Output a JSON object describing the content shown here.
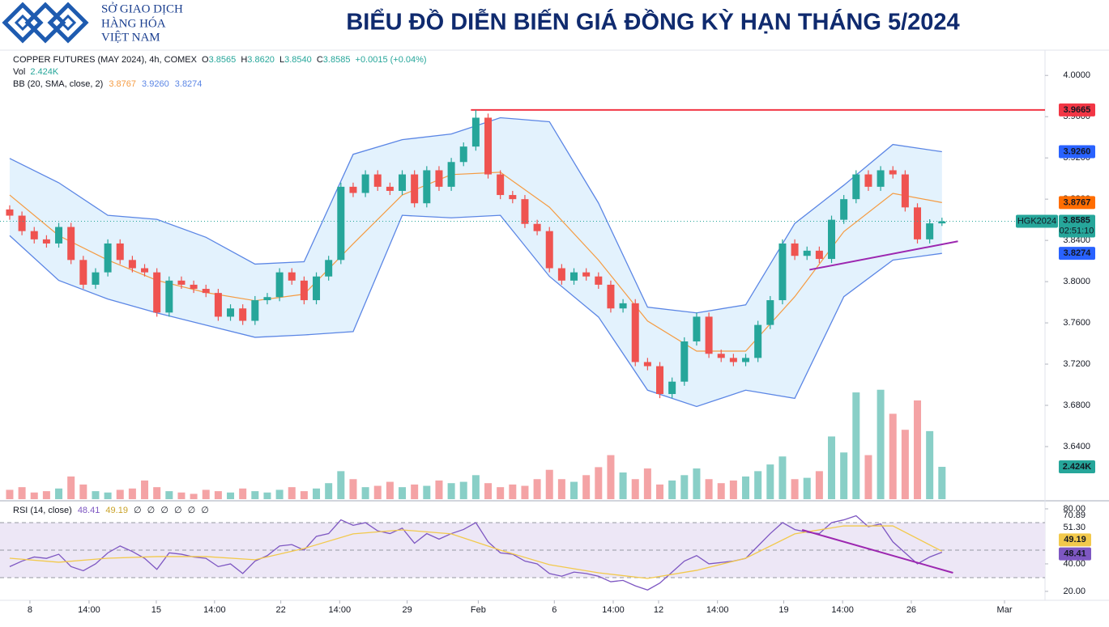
{
  "header": {
    "logo": [
      "SỞ GIAO DỊCH",
      "HÀNG HÓA",
      "VIỆT NAM"
    ],
    "title": "BIỂU ĐỒ DIỄN BIẾN GIÁ ĐỒNG KỲ HẠN THÁNG 5/2024"
  },
  "chart_data": [
    {
      "type": "candlestick",
      "legend": {
        "symbol": "COPPER FUTURES (MAY 2024), 4h, COMEX",
        "ohlc": [
          {
            "key": "O",
            "value": "3.8565"
          },
          {
            "key": "H",
            "value": "3.8620"
          },
          {
            "key": "L",
            "value": "3.8540"
          },
          {
            "key": "C",
            "value": "3.8585"
          }
        ],
        "change": "+0.0015 (+0.04%)",
        "vol": {
          "name": "Vol",
          "value": "2.424K"
        },
        "bb": {
          "name": "BB (20, SMA, close, 2)",
          "values": [
            "3.8767",
            "3.9260",
            "3.8274"
          ]
        }
      },
      "xlim": [
        -0.79,
        84.4
      ],
      "xticks": [
        {
          "value": 1.65,
          "label": "8"
        },
        {
          "value": 6.47,
          "label": "14:00"
        },
        {
          "value": 11.95,
          "label": "15"
        },
        {
          "value": 16.7,
          "label": "14:00"
        },
        {
          "value": 22.1,
          "label": "22"
        },
        {
          "value": 26.9,
          "label": "14:00"
        },
        {
          "value": 32.4,
          "label": "29"
        },
        {
          "value": 38.2,
          "label": "Feb"
        },
        {
          "value": 44.4,
          "label": "6"
        },
        {
          "value": 49.2,
          "label": "14:00"
        },
        {
          "value": 52.9,
          "label": "12"
        },
        {
          "value": 57.7,
          "label": "14:00"
        },
        {
          "value": 63.1,
          "label": "19"
        },
        {
          "value": 67.9,
          "label": "14:00"
        },
        {
          "value": 73.5,
          "label": "26"
        },
        {
          "value": 81.1,
          "label": "Mar"
        }
      ],
      "ylim": [
        3.589,
        4.0245
      ],
      "yticks": [
        {
          "value": 4.0,
          "label": "4.0000"
        },
        {
          "value": 3.96,
          "label": "3.9600"
        },
        {
          "value": 3.92,
          "label": "3.9200"
        },
        {
          "value": 3.88,
          "label": "3.8800"
        },
        {
          "value": 3.84,
          "label": "3.8400"
        },
        {
          "value": 3.8,
          "label": "3.8000"
        },
        {
          "value": 3.76,
          "label": "3.7600"
        },
        {
          "value": 3.72,
          "label": "3.7200"
        },
        {
          "value": 3.68,
          "label": "3.6800"
        },
        {
          "value": 3.64,
          "label": "3.6400"
        }
      ],
      "up_color": "#26a69a",
      "down_color": "#ef5350",
      "symbol_label": "HGK2024",
      "last_label": "3.8585",
      "countdown": "02:51:10",
      "open": [
        3.87,
        3.864,
        3.849,
        3.841,
        3.837,
        3.853,
        3.821,
        3.797,
        3.809,
        3.837,
        3.821,
        3.813,
        3.809,
        3.77,
        3.801,
        3.797,
        3.793,
        3.789,
        3.766,
        3.774,
        3.762,
        3.782,
        3.785,
        3.809,
        3.801,
        3.782,
        3.805,
        3.821,
        3.892,
        3.886,
        3.904,
        3.892,
        3.888,
        3.904,
        3.876,
        3.908,
        3.892,
        3.916,
        3.931,
        3.959,
        3.904,
        3.884,
        3.88,
        3.856,
        3.849,
        3.813,
        3.801,
        3.809,
        3.805,
        3.797,
        3.774,
        3.779,
        3.722,
        3.718,
        3.691,
        3.703,
        3.742,
        3.766,
        3.73,
        3.726,
        3.722,
        3.726,
        3.758,
        3.782,
        3.837,
        3.825,
        3.83,
        3.822,
        3.86,
        3.88,
        3.904,
        3.892,
        3.908,
        3.904,
        3.872,
        3.841,
        3.8565
      ],
      "high": [
        3.874,
        3.868,
        3.853,
        3.845,
        3.857,
        3.857,
        3.825,
        3.813,
        3.841,
        3.841,
        3.825,
        3.817,
        3.813,
        3.805,
        3.805,
        3.801,
        3.797,
        3.793,
        3.778,
        3.778,
        3.786,
        3.789,
        3.813,
        3.813,
        3.805,
        3.809,
        3.825,
        3.896,
        3.896,
        3.908,
        3.908,
        3.896,
        3.908,
        3.908,
        3.912,
        3.912,
        3.92,
        3.935,
        3.9665,
        3.963,
        3.908,
        3.888,
        3.884,
        3.86,
        3.853,
        3.817,
        3.813,
        3.813,
        3.809,
        3.801,
        3.783,
        3.783,
        3.726,
        3.722,
        3.707,
        3.746,
        3.77,
        3.77,
        3.734,
        3.73,
        3.73,
        3.762,
        3.786,
        3.841,
        3.841,
        3.834,
        3.834,
        3.864,
        3.884,
        3.908,
        3.908,
        3.912,
        3.912,
        3.908,
        3.876,
        3.8605,
        3.862
      ],
      "low": [
        3.86,
        3.845,
        3.837,
        3.833,
        3.833,
        3.817,
        3.793,
        3.793,
        3.805,
        3.817,
        3.809,
        3.805,
        3.766,
        3.766,
        3.793,
        3.789,
        3.785,
        3.762,
        3.762,
        3.758,
        3.758,
        3.778,
        3.781,
        3.797,
        3.778,
        3.778,
        3.801,
        3.817,
        3.882,
        3.882,
        3.888,
        3.884,
        3.884,
        3.872,
        3.872,
        3.888,
        3.888,
        3.912,
        3.927,
        3.9,
        3.88,
        3.876,
        3.852,
        3.845,
        3.809,
        3.797,
        3.797,
        3.801,
        3.793,
        3.77,
        3.77,
        3.718,
        3.714,
        3.687,
        3.687,
        3.699,
        3.738,
        3.726,
        3.722,
        3.718,
        3.718,
        3.722,
        3.754,
        3.778,
        3.821,
        3.821,
        3.818,
        3.818,
        3.856,
        3.876,
        3.888,
        3.888,
        3.9,
        3.868,
        3.837,
        3.837,
        3.854
      ],
      "close": [
        3.864,
        3.849,
        3.841,
        3.837,
        3.853,
        3.821,
        3.797,
        3.809,
        3.837,
        3.821,
        3.813,
        3.809,
        3.77,
        3.801,
        3.797,
        3.793,
        3.789,
        3.766,
        3.774,
        3.762,
        3.782,
        3.785,
        3.809,
        3.801,
        3.782,
        3.805,
        3.821,
        3.892,
        3.886,
        3.904,
        3.892,
        3.888,
        3.904,
        3.876,
        3.908,
        3.892,
        3.916,
        3.931,
        3.959,
        3.904,
        3.884,
        3.88,
        3.856,
        3.849,
        3.813,
        3.801,
        3.809,
        3.805,
        3.797,
        3.774,
        3.779,
        3.722,
        3.718,
        3.691,
        3.703,
        3.742,
        3.766,
        3.73,
        3.726,
        3.722,
        3.726,
        3.758,
        3.782,
        3.837,
        3.825,
        3.83,
        3.822,
        3.86,
        3.88,
        3.904,
        3.892,
        3.908,
        3.904,
        3.872,
        3.841,
        3.8565,
        3.8585
      ],
      "volume": [
        700,
        900,
        500,
        600,
        800,
        1700,
        1100,
        600,
        500,
        700,
        800,
        1400,
        900,
        600,
        500,
        400,
        700,
        600,
        500,
        800,
        600,
        500,
        700,
        900,
        600,
        800,
        1200,
        2100,
        1500,
        900,
        1000,
        1300,
        900,
        1100,
        1000,
        1400,
        1200,
        1300,
        1800,
        1200,
        900,
        1100,
        1000,
        1500,
        2200,
        1500,
        1300,
        1800,
        2400,
        3300,
        2000,
        1500,
        2300,
        1100,
        1400,
        1800,
        2300,
        1500,
        1200,
        1400,
        1700,
        2100,
        2600,
        3200,
        1500,
        1600,
        2100,
        4700,
        3500,
        8000,
        3300,
        8200,
        6400,
        5200,
        7400,
        5100,
        2424
      ],
      "volume_lim": [
        0,
        9700
      ],
      "volume_last_label": "2.424K",
      "volume_colors": [
        "#89cfc7",
        "#f4a3a5"
      ],
      "band_fill": "#e3f2fd",
      "bands": [
        {
          "color": "#5b86e5",
          "last_label": "3.9260",
          "x": [
            0,
            4,
            8,
            12,
            16,
            20,
            24,
            28,
            32,
            36,
            40,
            44,
            48,
            52,
            56,
            60,
            64,
            68,
            72,
            76
          ],
          "values": [
            3.9195,
            3.8959,
            3.8643,
            3.8604,
            3.843,
            3.817,
            3.8193,
            3.9235,
            3.9377,
            3.9432,
            3.959,
            3.9551,
            3.8762,
            3.7752,
            3.7697,
            3.7775,
            3.8564,
            3.8935,
            3.933,
            3.926
          ]
        },
        {
          "color": "#f59b42",
          "last_label": "3.8767",
          "x": [
            0,
            4,
            8,
            12,
            16,
            20,
            24,
            28,
            32,
            36,
            40,
            44,
            48,
            52,
            56,
            60,
            64,
            68,
            72,
            76
          ],
          "values": [
            3.884,
            3.8446,
            3.8209,
            3.8012,
            3.7894,
            3.7815,
            3.7878,
            3.8367,
            3.884,
            3.9038,
            3.9061,
            3.8722,
            3.8209,
            3.7618,
            3.7326,
            3.7326,
            3.7854,
            3.8485,
            3.8856,
            3.8767
          ]
        },
        {
          "color": "#5b86e5",
          "last_label": "3.8274",
          "x": [
            0,
            4,
            8,
            12,
            16,
            20,
            24,
            28,
            32,
            36,
            40,
            44,
            48,
            52,
            56,
            60,
            64,
            68,
            72,
            76
          ],
          "values": [
            3.8446,
            3.8012,
            3.7831,
            3.7697,
            3.7578,
            3.746,
            3.7483,
            3.7515,
            3.8643,
            3.8619,
            3.8643,
            3.8051,
            3.7657,
            3.6947,
            3.6789,
            3.6947,
            3.6868,
            3.7854,
            3.8209,
            3.8274
          ]
        }
      ],
      "hline": {
        "value": 3.9665,
        "x_start": 37.6,
        "label": "3.9665",
        "color": "#f23645"
      },
      "trendlines": [
        {
          "x": [
            65.2,
            77.3
          ],
          "y": [
            3.8115,
            3.8391
          ],
          "color": "#9c27b0"
        }
      ]
    },
    {
      "type": "line",
      "legend": {
        "name": "RSI (14, close)",
        "values": [
          "48.41",
          "49.19"
        ],
        "extras": [
          "∅",
          "∅",
          "∅",
          "∅",
          "∅",
          "∅"
        ]
      },
      "ylim": [
        13.5,
        84.1
      ],
      "yticks": [
        {
          "value": 80,
          "label": "80.00"
        },
        {
          "value": 40,
          "label": "40.00"
        },
        {
          "value": 20,
          "label": "20.00"
        }
      ],
      "scale_labels": [
        "70.89",
        "51.30"
      ],
      "levels": [
        70,
        50,
        30
      ],
      "level_fill": "#ede7f6",
      "series": [
        {
          "color": "#7e57c2",
          "last_label": "48.41",
          "x": [
            0,
            1,
            2,
            3,
            4,
            5,
            6,
            7,
            8,
            9,
            10,
            11,
            12,
            13,
            14,
            15,
            16,
            17,
            18,
            19,
            20,
            21,
            22,
            23,
            24,
            25,
            26,
            27,
            28,
            29,
            30,
            31,
            32,
            33,
            34,
            35,
            36,
            37,
            38,
            39,
            40,
            41,
            42,
            43,
            44,
            45,
            46,
            47,
            48,
            49,
            50,
            51,
            52,
            53,
            54,
            55,
            56,
            57,
            58,
            59,
            60,
            61,
            62,
            63,
            64,
            65,
            66,
            67,
            68,
            69,
            70,
            71,
            72,
            73,
            74,
            75,
            76
          ],
          "values": [
            38,
            42,
            45,
            44,
            47,
            38,
            35,
            40,
            48,
            53,
            49,
            44,
            36,
            48,
            47,
            45,
            44,
            38,
            40,
            33,
            42,
            46,
            53,
            54,
            50,
            60,
            62,
            72,
            68,
            70,
            64,
            62,
            66,
            55,
            62,
            58,
            62,
            65,
            70,
            56,
            48,
            47,
            42,
            40,
            33,
            31,
            34,
            33,
            31,
            27,
            28,
            24,
            21,
            26,
            34,
            42,
            46,
            40,
            41,
            42,
            44,
            53,
            62,
            70,
            65,
            63,
            62,
            70,
            72,
            75,
            67,
            69,
            56,
            48,
            40,
            45,
            48.41
          ]
        },
        {
          "color": "#f2c94c",
          "last_label": "49.19",
          "x": [
            0,
            4,
            8,
            12,
            16,
            20,
            24,
            28,
            32,
            36,
            40,
            44,
            48,
            52,
            56,
            60,
            64,
            68,
            72,
            76
          ],
          "values": [
            44.1,
            41.2,
            44.1,
            45.3,
            45.3,
            43,
            51.2,
            61.8,
            64.7,
            61.8,
            50,
            39.4,
            33.5,
            29.4,
            35.3,
            44.1,
            61.8,
            67.6,
            67.6,
            49.19
          ]
        }
      ],
      "trendlines": [
        {
          "x": [
            64.6,
            76.9
          ],
          "y": [
            64.7,
            33.5
          ],
          "color": "#9c27b0"
        }
      ]
    }
  ]
}
